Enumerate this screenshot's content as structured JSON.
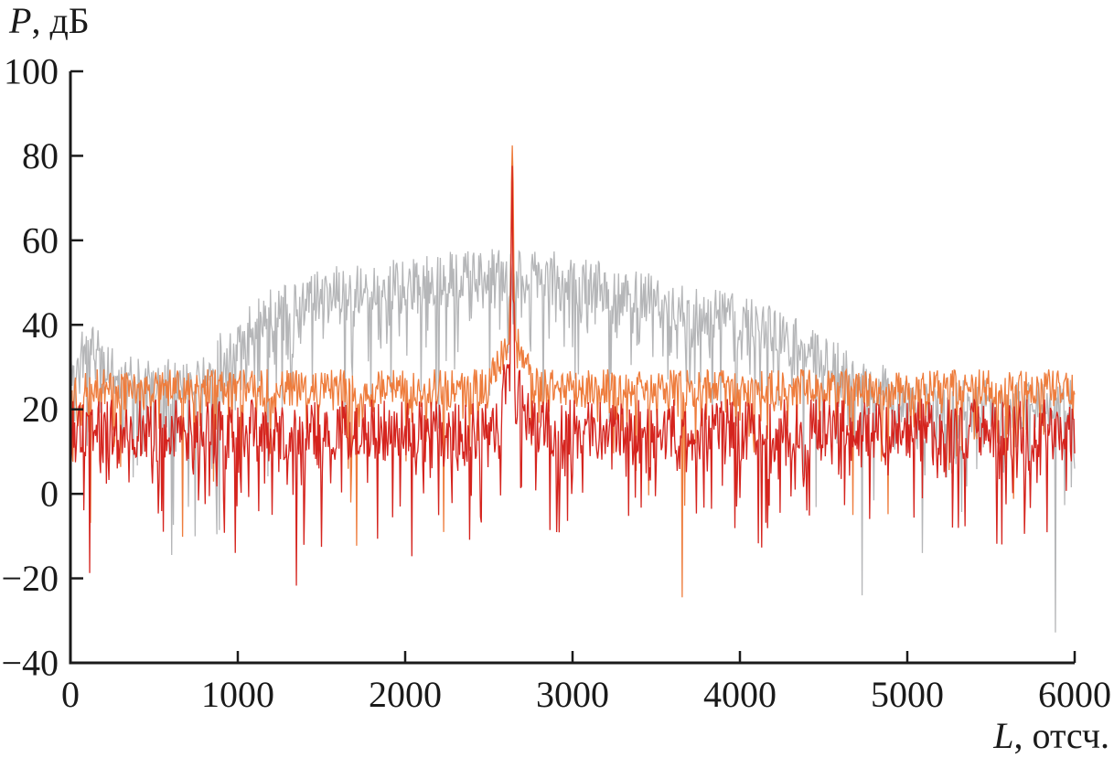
{
  "figure": {
    "kind": "scientific spectrum plot",
    "background": "#ffffff",
    "axes_color": "#1a1a1a",
    "y_title_var": "P",
    "y_title_rest": ", дБ",
    "x_title_var": "L",
    "x_title_rest": ", отсч."
  },
  "chart_data": {
    "type": "line",
    "title": "",
    "xlabel": "L, отсч.",
    "ylabel": "P, дБ",
    "xlim": [
      0,
      6000
    ],
    "ylim": [
      -40,
      100
    ],
    "xticks": [
      0,
      1000,
      2000,
      3000,
      4000,
      5000,
      6000
    ],
    "yticks": [
      -40,
      -20,
      0,
      20,
      40,
      60,
      80,
      100
    ],
    "xtick_labels": [
      "0",
      "1000",
      "2000",
      "3000",
      "4000",
      "5000",
      "6000"
    ],
    "ytick_labels": [
      "−40",
      "−20",
      "0",
      "20",
      "40",
      "60",
      "80",
      "100"
    ],
    "grid": false,
    "legend": "none",
    "peak_values": {
      "L": 2640,
      "P_orange_peak": 78.5,
      "P_red_peak": 74
    },
    "series": [
      {
        "name": "gray-broadband-spectrum",
        "color": "#b5b6b8",
        "description": "Noisy broadband hump: floor ~26 dB at edges, rises to ~57 dB top between L≈2000-3000, falls back to floor by L≈5100; occasional deep downward spikes to ≈ −20 dB.",
        "envelope": [
          [
            0,
            30
          ],
          [
            100,
            36
          ],
          [
            260,
            29
          ],
          [
            500,
            26
          ],
          [
            700,
            27
          ],
          [
            900,
            33
          ],
          [
            1100,
            40
          ],
          [
            1300,
            45
          ],
          [
            1600,
            48
          ],
          [
            2000,
            50
          ],
          [
            2400,
            52
          ],
          [
            2900,
            52
          ],
          [
            3300,
            48
          ],
          [
            3700,
            44
          ],
          [
            4100,
            41
          ],
          [
            4500,
            33
          ],
          [
            4800,
            26
          ],
          [
            5000,
            21.5
          ],
          [
            5300,
            21
          ],
          [
            6000,
            21
          ]
        ],
        "noise": {
          "amp": 6,
          "tail_prob": 0.42,
          "tail_scale": 8
        },
        "seed": 11
      },
      {
        "name": "orange-noise-spectrum",
        "color": "#ee7c3c",
        "description": "Flat noise floor ~25 dB across 0–6000 with narrow carrier spike to ≈78.5 dB at L≈2640 on a small pedestal; sparse downward spikes to ≈ −12 dB.",
        "envelope": [
          [
            0,
            25
          ],
          [
            6000,
            25
          ]
        ],
        "noise": {
          "amp": 4.5,
          "tail_prob": 0.18,
          "tail_scale": 6.5
        },
        "peak": {
          "center": 2640,
          "spike_height": 41.5,
          "spike_sigma": 10,
          "pedestal_height": 12,
          "pedestal_sigma": 95
        },
        "seed": 22
      },
      {
        "name": "red-noise-spectrum",
        "color": "#d5241e",
        "description": "Flat noise floor ~15 dB across 0–6000 with narrow carrier spike to ≈74 dB at L≈2640; frequent downward spikes to ≈ 0…−10 dB, rare to ≈ −23 dB.",
        "envelope": [
          [
            0,
            15
          ],
          [
            6000,
            15
          ]
        ],
        "noise": {
          "amp": 7.5,
          "tail_prob": 0.32,
          "tail_scale": 7
        },
        "peak": {
          "center": 2640,
          "spike_height": 46,
          "spike_sigma": 9,
          "pedestal_height": 13,
          "pedestal_sigma": 75
        },
        "seed": 33
      }
    ]
  }
}
